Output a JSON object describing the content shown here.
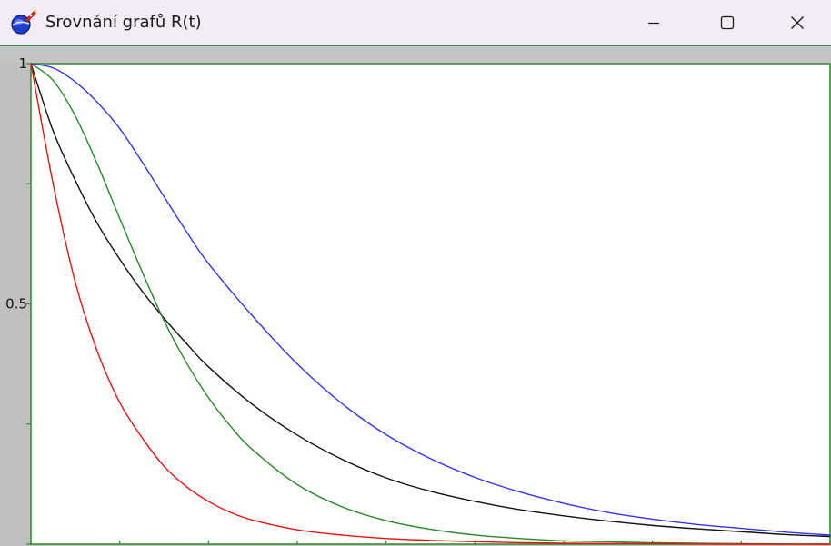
{
  "window": {
    "title": "Srovnání grafů R(t)",
    "icon": "rocket-globe-icon",
    "controls": {
      "minimize": "minimize-icon",
      "maximize": "maximize-icon",
      "close": "close-icon"
    }
  },
  "colors": {
    "plot_frame": "#2e8b2e",
    "plot_background": "#ffffff",
    "client_background": "#c0c0c0"
  },
  "chart_data": {
    "type": "line",
    "xlim": [
      0,
      9
    ],
    "ylim": [
      0,
      1
    ],
    "y_ticks": [
      0,
      0.25,
      0.5,
      0.75,
      1
    ],
    "y_tick_labels": [
      {
        "value": 1,
        "label": "1"
      },
      {
        "value": 0.5,
        "label": "0.5"
      }
    ],
    "x_ticks": [
      0,
      1,
      2,
      3,
      4,
      5,
      6,
      7,
      8,
      9
    ],
    "grid": false,
    "series": [
      {
        "color": "#3333ff",
        "x": [
          0,
          0.25,
          0.5,
          0.75,
          1,
          1.25,
          1.5,
          1.75,
          2,
          2.5,
          3,
          3.5,
          4,
          4.5,
          5,
          5.5,
          6,
          6.5,
          7,
          7.5,
          8,
          8.5,
          9
        ],
        "y": [
          1,
          0.991,
          0.962,
          0.919,
          0.865,
          0.796,
          0.723,
          0.651,
          0.584,
          0.474,
          0.375,
          0.293,
          0.228,
          0.178,
          0.139,
          0.109,
          0.085,
          0.066,
          0.052,
          0.041,
          0.033,
          0.025,
          0.019
        ]
      },
      {
        "color": "#111111",
        "x": [
          0,
          0.25,
          0.5,
          0.75,
          1,
          1.25,
          1.5,
          1.75,
          2,
          2.5,
          3,
          3.5,
          4,
          4.5,
          5,
          5.5,
          6,
          6.5,
          7,
          7.5,
          8,
          8.5,
          9
        ],
        "y": [
          1,
          0.86,
          0.757,
          0.667,
          0.593,
          0.527,
          0.47,
          0.418,
          0.369,
          0.29,
          0.227,
          0.177,
          0.138,
          0.11,
          0.089,
          0.072,
          0.059,
          0.048,
          0.039,
          0.032,
          0.026,
          0.02,
          0.016
        ]
      },
      {
        "color": "#228b22",
        "x": [
          0,
          0.25,
          0.5,
          0.75,
          1,
          1.25,
          1.5,
          1.75,
          2,
          2.25,
          2.5,
          3,
          3.5,
          4,
          4.5,
          5,
          5.5,
          6,
          6.5,
          7,
          8,
          9
        ],
        "y": [
          1,
          0.965,
          0.891,
          0.79,
          0.678,
          0.568,
          0.465,
          0.378,
          0.305,
          0.245,
          0.196,
          0.124,
          0.078,
          0.049,
          0.031,
          0.019,
          0.012,
          0.007,
          0.005,
          0.003,
          0.001,
          0
        ]
      },
      {
        "color": "#ee1111",
        "x": [
          0,
          0.25,
          0.5,
          0.75,
          1,
          1.25,
          1.5,
          1.75,
          2,
          2.25,
          2.5,
          3,
          3.5,
          4,
          4.5,
          5,
          5.5,
          6,
          7,
          8,
          9
        ],
        "y": [
          1,
          0.75,
          0.545,
          0.4,
          0.295,
          0.222,
          0.162,
          0.12,
          0.089,
          0.066,
          0.05,
          0.03,
          0.019,
          0.012,
          0.008,
          0.005,
          0.003,
          0.002,
          0.001,
          0,
          0
        ]
      }
    ]
  }
}
